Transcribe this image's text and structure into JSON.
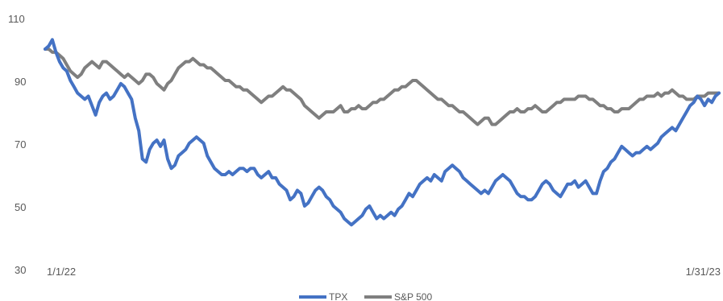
{
  "chart_data": {
    "type": "line",
    "x_start_label": "1/1/22",
    "x_end_label": "1/31/23",
    "ylim": [
      30,
      110
    ],
    "y_ticks": [
      "110",
      "90",
      "70",
      "50",
      "30"
    ],
    "grid": false,
    "legend_position": "bottom",
    "series": [
      {
        "name": "TPX",
        "color": "#4472C4",
        "values": [
          100,
          101,
          103,
          99,
          96,
          94,
          93,
          90,
          88,
          86,
          85,
          84,
          85,
          82,
          79,
          83,
          85,
          86,
          84,
          85,
          87,
          89,
          88,
          86,
          84,
          78,
          74,
          65,
          64,
          68,
          70,
          71,
          69,
          71,
          65,
          62,
          63,
          66,
          67,
          68,
          70,
          71,
          72,
          71,
          70,
          66,
          64,
          62,
          61,
          60,
          60,
          61,
          60,
          61,
          62,
          62,
          61,
          62,
          62,
          60,
          59,
          60,
          61,
          59,
          59,
          57,
          56,
          55,
          52,
          53,
          55,
          54,
          50,
          51,
          53,
          55,
          56,
          55,
          53,
          52,
          50,
          49,
          48,
          46,
          45,
          44,
          45,
          46,
          47,
          49,
          50,
          48,
          46,
          47,
          46,
          47,
          48,
          47,
          49,
          50,
          52,
          54,
          53,
          55,
          57,
          58,
          59,
          58,
          60,
          59,
          58,
          61,
          62,
          63,
          62,
          61,
          59,
          58,
          57,
          56,
          55,
          54,
          55,
          54,
          56,
          58,
          59,
          60,
          59,
          58,
          56,
          54,
          53,
          53,
          52,
          52,
          53,
          55,
          57,
          58,
          57,
          55,
          54,
          53,
          55,
          57,
          57,
          58,
          56,
          57,
          58,
          56,
          54,
          54,
          58,
          61,
          62,
          64,
          65,
          67,
          69,
          68,
          67,
          66,
          67,
          67,
          68,
          69,
          68,
          69,
          70,
          72,
          73,
          74,
          75,
          74,
          76,
          78,
          80,
          82,
          83,
          85,
          84,
          82,
          84,
          83,
          85,
          86
        ]
      },
      {
        "name": "S&P 500",
        "color": "#7F7F7F",
        "values": [
          100,
          100,
          99,
          99,
          98,
          97,
          95,
          93,
          92,
          91,
          92,
          94,
          95,
          96,
          95,
          94,
          96,
          96,
          95,
          94,
          93,
          92,
          91,
          92,
          91,
          90,
          89,
          90,
          92,
          92,
          91,
          89,
          88,
          87,
          89,
          90,
          92,
          94,
          95,
          96,
          96,
          97,
          96,
          95,
          95,
          94,
          94,
          93,
          92,
          91,
          90,
          90,
          89,
          88,
          88,
          87,
          87,
          86,
          85,
          84,
          83,
          84,
          85,
          85,
          86,
          87,
          88,
          87,
          87,
          86,
          85,
          84,
          82,
          81,
          80,
          79,
          78,
          79,
          80,
          80,
          80,
          81,
          82,
          80,
          80,
          81,
          81,
          82,
          81,
          81,
          82,
          83,
          83,
          84,
          84,
          85,
          86,
          87,
          87,
          88,
          88,
          89,
          90,
          90,
          89,
          88,
          87,
          86,
          85,
          84,
          84,
          83,
          82,
          82,
          81,
          80,
          80,
          79,
          78,
          77,
          76,
          77,
          78,
          78,
          76,
          76,
          77,
          78,
          79,
          80,
          80,
          81,
          80,
          80,
          81,
          81,
          82,
          81,
          80,
          80,
          81,
          82,
          83,
          83,
          84,
          84,
          84,
          84,
          85,
          85,
          85,
          84,
          84,
          83,
          82,
          82,
          81,
          81,
          80,
          80,
          81,
          81,
          81,
          82,
          83,
          84,
          84,
          85,
          85,
          85,
          86,
          85,
          86,
          86,
          87,
          86,
          85,
          85,
          84,
          84,
          84,
          85,
          85,
          85,
          86,
          86,
          86,
          86
        ]
      }
    ]
  }
}
